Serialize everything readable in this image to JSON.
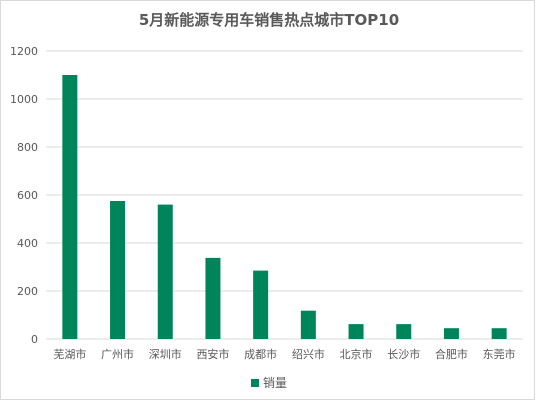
{
  "chart_data": {
    "type": "bar",
    "title": "5月新能源专用车销售热点城市TOP10",
    "categories": [
      "芜湖市",
      "广州市",
      "深圳市",
      "西安市",
      "成都市",
      "绍兴市",
      "北京市",
      "长沙市",
      "合肥市",
      "东莞市"
    ],
    "series": [
      {
        "name": "销量",
        "values": [
          1100,
          575,
          560,
          338,
          285,
          118,
          62,
          62,
          45,
          45
        ]
      }
    ],
    "yticks": [
      0,
      200,
      400,
      600,
      800,
      1000,
      1200
    ],
    "ylim": [
      0,
      1200
    ],
    "grid": true,
    "legend": "bottom",
    "colors": {
      "bar": "#00845A",
      "grid": "#d9d9d9",
      "text": "#595959"
    }
  }
}
